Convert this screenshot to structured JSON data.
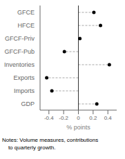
{
  "chart_data": {
    "type": "lollipop",
    "orientation": "horizontal",
    "categories": [
      "GFCE",
      "HFCE",
      "GFCF-Priv",
      "GFCF-Pub",
      "Inventories",
      "Exports",
      "Imports",
      "GDP"
    ],
    "values": [
      0.21,
      0.3,
      0.02,
      -0.19,
      0.42,
      -0.43,
      -0.36,
      0.25
    ],
    "xlim": [
      -0.52,
      0.52
    ],
    "xticks": [
      -0.4,
      -0.2,
      0.0,
      0.2,
      0.4
    ],
    "xlabel": "% points",
    "annotations": [
      "Notes: Volume measures, contributions",
      "    to quarterly growth."
    ],
    "color": "#000000",
    "marker": "circle",
    "line_style": "dashed",
    "grid": false
  }
}
